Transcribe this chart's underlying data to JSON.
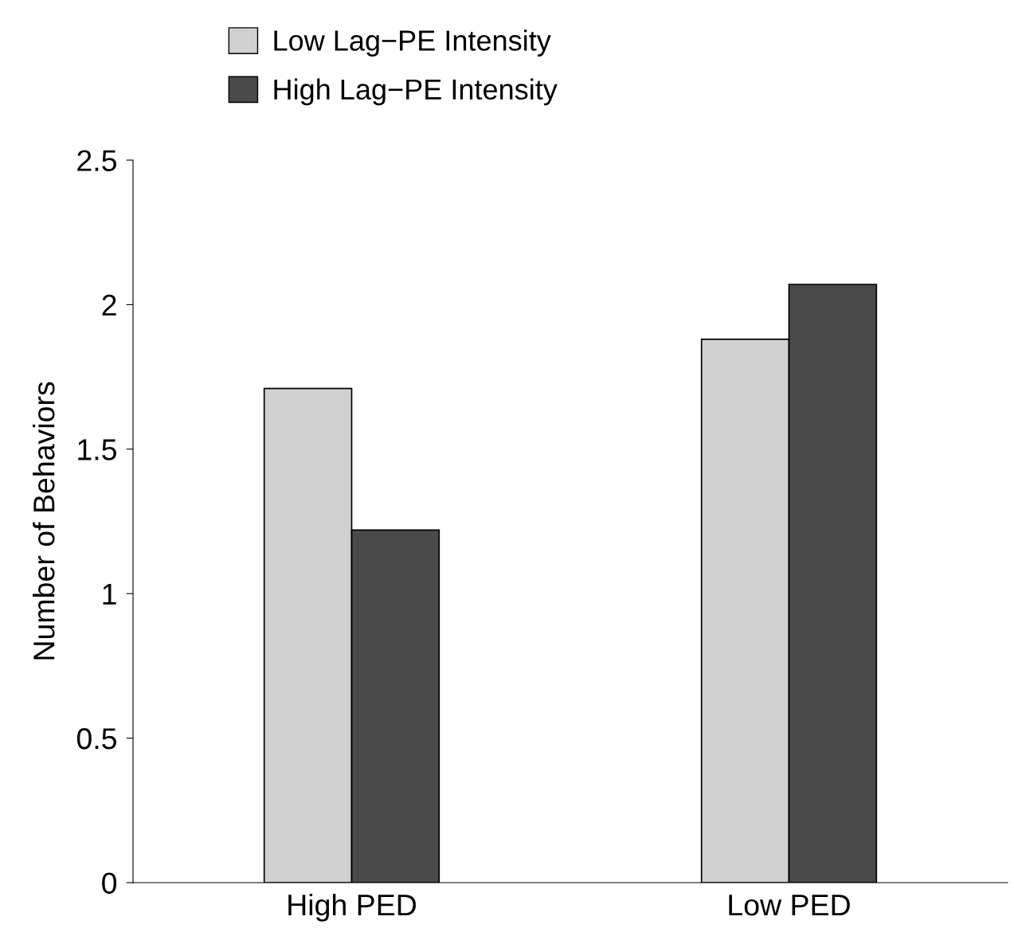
{
  "chart_data": {
    "type": "bar",
    "ylabel": "Number of Behaviors",
    "categories": [
      "High PED",
      "Low PED"
    ],
    "series": [
      {
        "name": "Low Lag−PE Intensity",
        "color": "#d0d0d0",
        "values": [
          1.71,
          1.88
        ]
      },
      {
        "name": "High Lag−PE Intensity",
        "color": "#4a4a4a",
        "values": [
          1.22,
          2.07
        ]
      }
    ],
    "ylim": [
      0,
      2.5
    ],
    "yticks": [
      0,
      {
        "value": 0.5,
        "label": "0.5"
      },
      1,
      {
        "value": 1.5,
        "label": "1.5"
      },
      2,
      {
        "value": 2.5,
        "label": "2.5"
      }
    ],
    "grid": false,
    "legend": "top left"
  }
}
